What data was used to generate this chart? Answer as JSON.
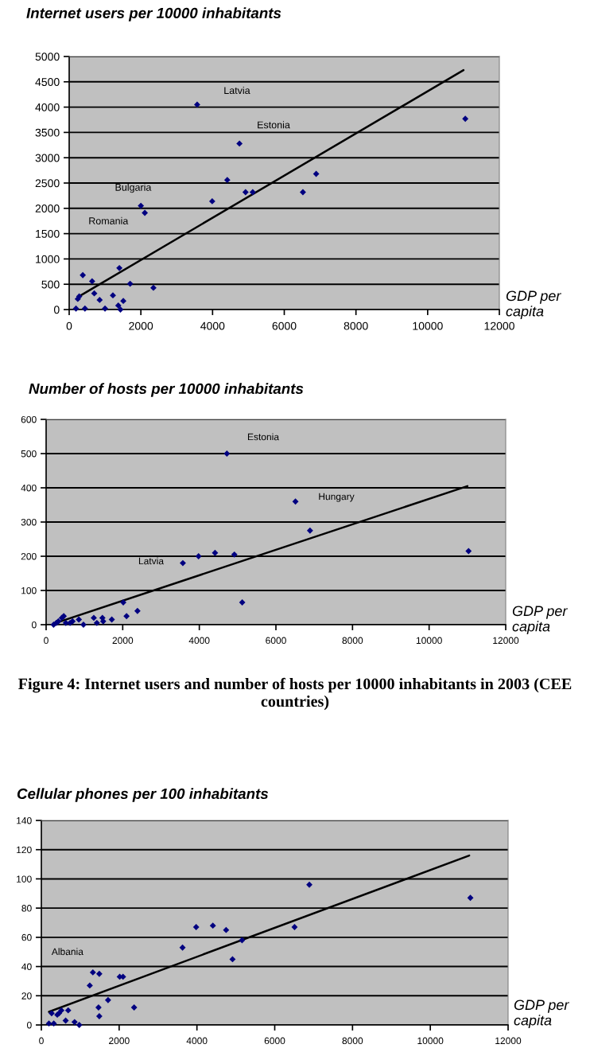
{
  "chart_data": [
    {
      "type": "scatter",
      "title": "Internet users per 10000 inhabitants",
      "xlabel": "GDP per capita",
      "xlim": [
        0,
        12000
      ],
      "xticks": [
        0,
        2000,
        4000,
        6000,
        8000,
        10000,
        12000
      ],
      "ylim": [
        0,
        5000
      ],
      "yticks": [
        0,
        500,
        1000,
        1500,
        2000,
        2500,
        3000,
        3500,
        4000,
        4500,
        5000
      ],
      "grid": "y",
      "marker": "diamond",
      "series": [
        {
          "color": "#000080",
          "x": [
            190,
            240,
            280,
            380,
            440,
            640,
            700,
            850,
            1000,
            1220,
            1370,
            1430,
            1510,
            1400,
            1700,
            2000,
            2110,
            2350,
            3570,
            3990,
            4410,
            4750,
            4920,
            5120,
            6520,
            6890,
            11050
          ],
          "values": [
            20,
            210,
            260,
            680,
            20,
            560,
            320,
            190,
            20,
            280,
            80,
            0,
            170,
            820,
            510,
            2050,
            1910,
            430,
            4050,
            2140,
            2560,
            3280,
            2320,
            2320,
            2320,
            2680,
            3770
          ]
        },
        {
          "type": "line",
          "color": "#000000",
          "marker": "none",
          "x": [
            250,
            11000
          ],
          "values": [
            250,
            4730
          ]
        }
      ],
      "annotations": [
        {
          "text": "Latvia",
          "x": 3570,
          "y": 4050
        },
        "Estonia",
        {
          "text": "Bulgaria",
          "x": 2000,
          "y": 2050
        },
        {
          "text": "Romania",
          "x": 2110,
          "y": 1910
        }
      ]
    },
    {
      "type": "scatter",
      "title": "Number of hosts per 10000 inhabitants",
      "xlabel": "GDP per capita",
      "xlim": [
        0,
        12000
      ],
      "xticks": [
        0,
        2000,
        4000,
        6000,
        8000,
        10000,
        12000
      ],
      "ylim": [
        0,
        600
      ],
      "yticks": [
        0,
        100,
        200,
        300,
        400,
        500,
        600
      ],
      "grid": "y",
      "marker": "diamond",
      "series": [
        {
          "color": "#000080",
          "x": [
            195,
            265,
            320,
            410,
            460,
            515,
            625,
            690,
            855,
            975,
            1245,
            1325,
            1470,
            1490,
            1715,
            2015,
            2100,
            2385,
            3570,
            3980,
            4410,
            4720,
            4915,
            5120,
            6510,
            6890,
            11030
          ],
          "values": [
            0,
            5,
            10,
            20,
            25,
            5,
            5,
            10,
            15,
            0,
            20,
            5,
            20,
            10,
            15,
            65,
            25,
            40,
            180,
            200,
            210,
            500,
            205,
            65,
            360,
            275,
            215
          ]
        },
        {
          "type": "line",
          "color": "#000000",
          "marker": "none",
          "x": [
            250,
            11000
          ],
          "values": [
            5,
            405
          ]
        }
      ],
      "annotations": [
        "Estonia",
        "Hungary",
        "Latvia",
        "Figure 4: Internet users and number of hosts per 10000 inhabitants in 2003 (CEE countries)"
      ]
    },
    {
      "type": "scatter",
      "title": "Cellular phones per 100 inhabitants",
      "xlabel": "GDP per capita",
      "xlim": [
        0,
        12000
      ],
      "xticks": [
        0,
        2000,
        4000,
        6000,
        8000,
        10000,
        12000
      ],
      "ylim": [
        0,
        140
      ],
      "yticks": [
        0,
        20,
        40,
        60,
        80,
        100,
        120,
        140
      ],
      "grid": "y",
      "marker": "diamond",
      "series": [
        {
          "color": "#000080",
          "x": [
            195,
            265,
            320,
            410,
            455,
            515,
            625,
            690,
            855,
            975,
            1245,
            1325,
            1470,
            1490,
            1490,
            1715,
            2015,
            2100,
            2385,
            3630,
            3980,
            4410,
            4750,
            4915,
            5160,
            6510,
            6890,
            11030
          ],
          "values": [
            1,
            8,
            1,
            7,
            8,
            10,
            3,
            10,
            2,
            0,
            27,
            36,
            12,
            6,
            35,
            17,
            33,
            33,
            12,
            53,
            67,
            68,
            65,
            45,
            58,
            67,
            96,
            87
          ]
        },
        {
          "type": "line",
          "color": "#000000",
          "marker": "none",
          "x": [
            195,
            11000
          ],
          "values": [
            9,
            116
          ]
        }
      ],
      "annotations": [
        {
          "text": "Albania",
          "x": 1325,
          "y": 36
        }
      ]
    }
  ]
}
